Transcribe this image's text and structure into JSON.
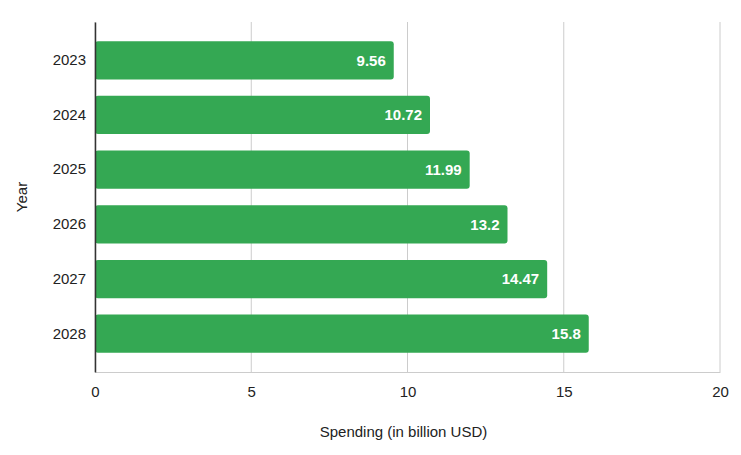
{
  "chart_data": {
    "type": "bar",
    "orientation": "horizontal",
    "x_label": "Spending (in billion USD)",
    "y_label": "Year",
    "categories": [
      "2023",
      "2024",
      "2025",
      "2026",
      "2027",
      "2028"
    ],
    "values": [
      9.56,
      10.72,
      11.99,
      13.2,
      14.47,
      15.8
    ],
    "color": "#34a853",
    "xlim": [
      0,
      20
    ],
    "xticks": [
      0,
      5,
      10,
      15,
      20
    ],
    "grid": true,
    "data_labels": true
  }
}
